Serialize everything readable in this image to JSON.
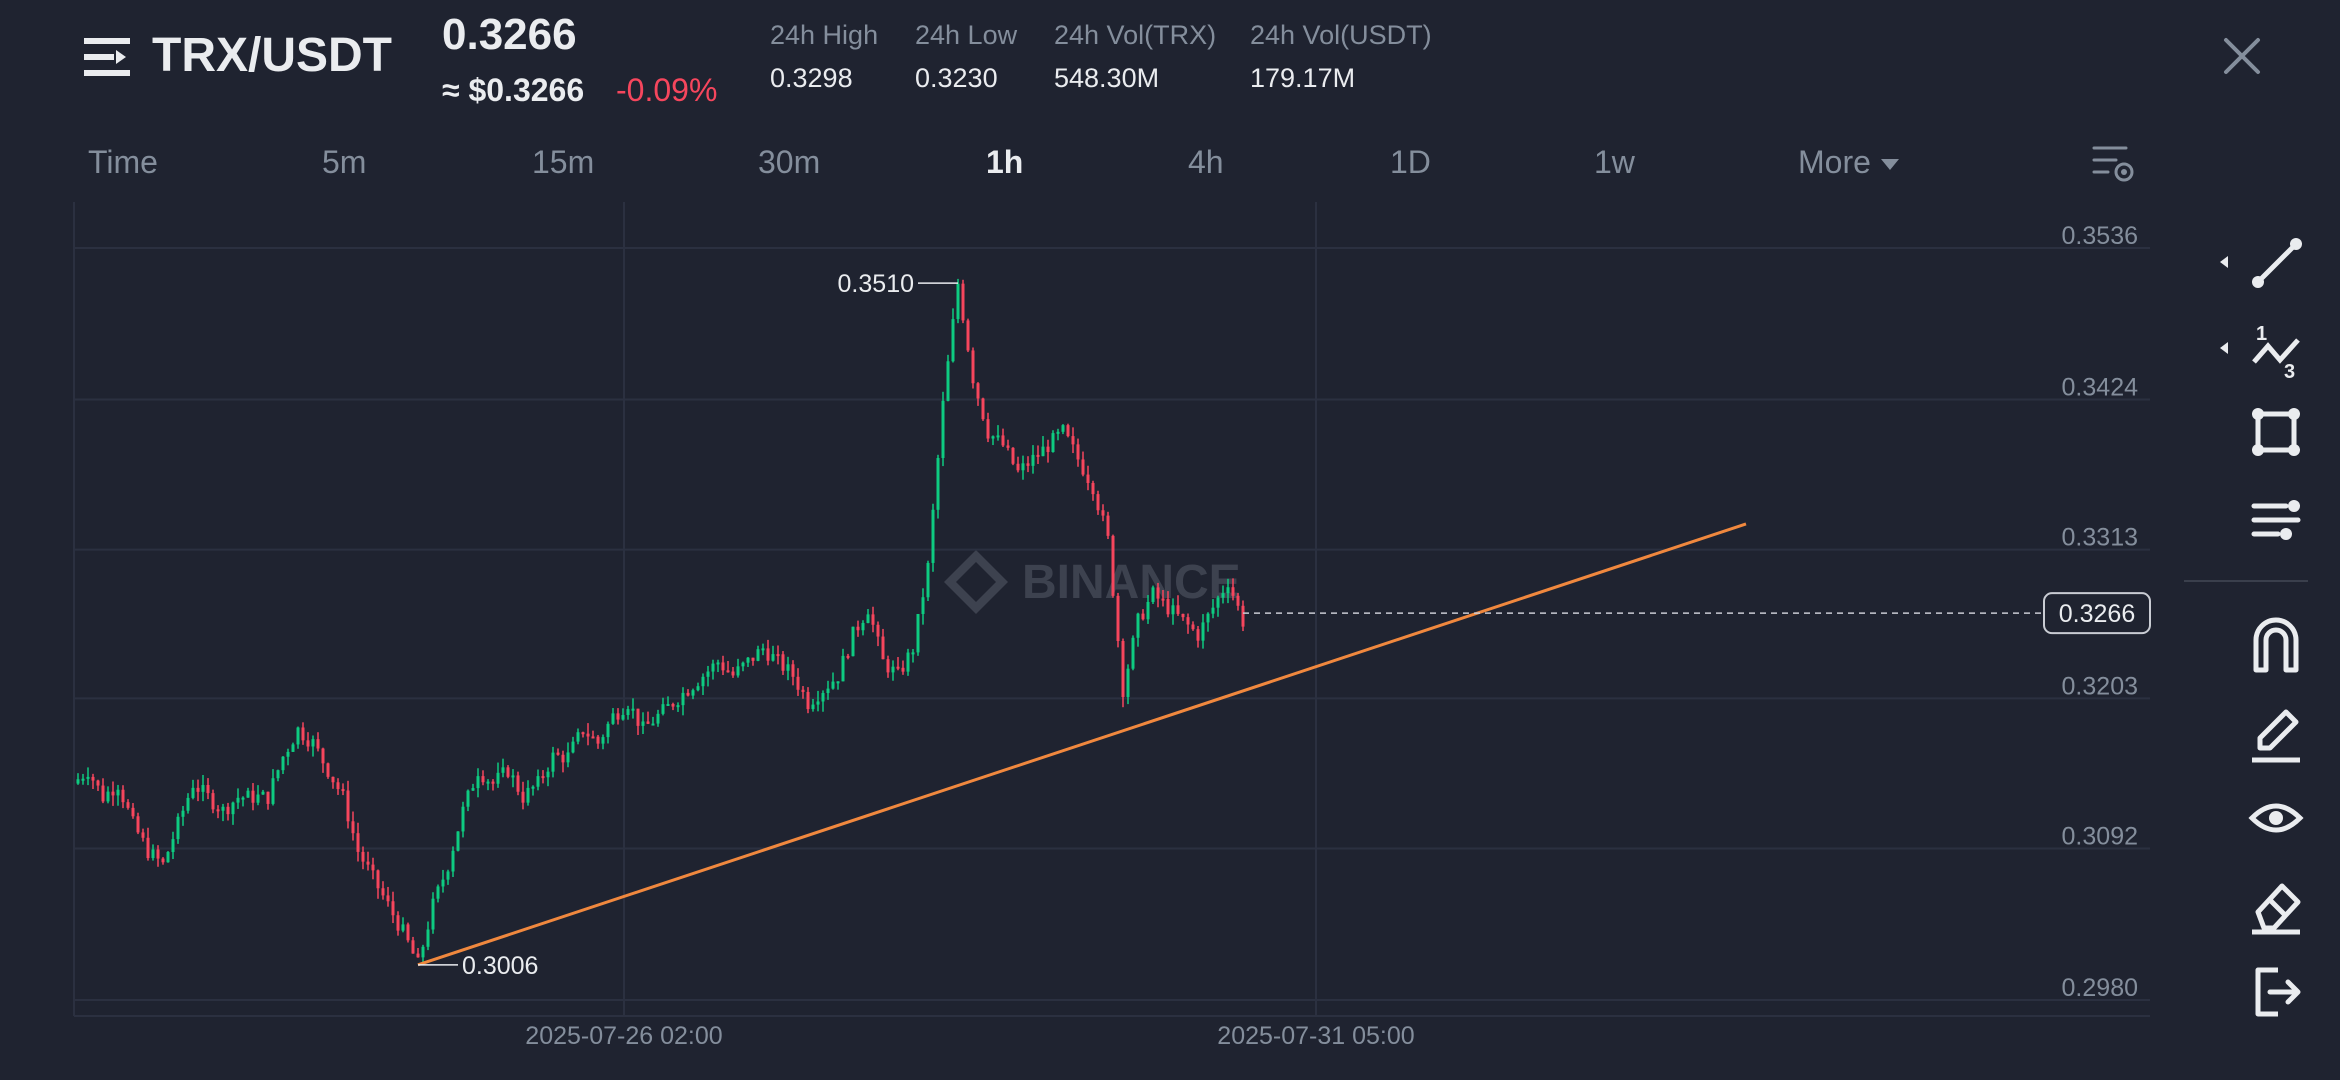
{
  "header": {
    "pair": "TRX/USDT",
    "price": "0.3266",
    "fiat_price": "≈ $0.3266",
    "change": "-0.09%",
    "stats": [
      {
        "label": "24h High",
        "value": "0.3298"
      },
      {
        "label": "24h Low",
        "value": "0.3230"
      },
      {
        "label": "24h Vol(TRX)",
        "value": "548.30M"
      },
      {
        "label": "24h Vol(USDT)",
        "value": "179.17M"
      }
    ]
  },
  "tabs": [
    "Time",
    "5m",
    "15m",
    "30m",
    "1h",
    "4h",
    "1D",
    "1w",
    "More"
  ],
  "active_tab": "1h",
  "watermark": "BINANCE",
  "colors": {
    "up": "#0ecb81",
    "down": "#f6465d",
    "trendline": "#f0883e",
    "background": "#1f2330"
  },
  "toolbar_icons": [
    "trend-line-icon",
    "fibonacci-icon",
    "rectangle-icon",
    "indicator-settings-icon",
    "magnet-icon",
    "pencil-icon",
    "eye-icon",
    "eraser-icon",
    "exit-icon"
  ],
  "chart_data": {
    "type": "candlestick",
    "title": "",
    "y_ticks": [
      "0.3536",
      "0.3424",
      "0.3313",
      "0.3203",
      "0.3092",
      "0.2980"
    ],
    "ylim": [
      0.298,
      0.3536
    ],
    "x_ticks": [
      "2025-07-26 02:00",
      "2025-07-31 05:00"
    ],
    "current_price": "0.3266",
    "high_marker": "0.3510",
    "low_marker": "0.3006",
    "grid": true,
    "close_path": [
      0.314,
      0.315,
      0.313,
      0.314,
      0.311,
      0.309,
      0.308,
      0.311,
      0.314,
      0.313,
      0.312,
      0.313,
      0.313,
      0.313,
      0.316,
      0.318,
      0.317,
      0.315,
      0.313,
      0.309,
      0.307,
      0.305,
      0.303,
      0.3006,
      0.305,
      0.308,
      0.312,
      0.315,
      0.314,
      0.315,
      0.313,
      0.314,
      0.316,
      0.316,
      0.318,
      0.317,
      0.319,
      0.32,
      0.318,
      0.319,
      0.32,
      0.321,
      0.322,
      0.323,
      0.322,
      0.323,
      0.324,
      0.323,
      0.322,
      0.32,
      0.321,
      0.322,
      0.325,
      0.327,
      0.323,
      0.322,
      0.324,
      0.33,
      0.342,
      0.351,
      0.344,
      0.34,
      0.339,
      0.337,
      0.338,
      0.339,
      0.34,
      0.338,
      0.336,
      0.332,
      0.321,
      0.326,
      0.328,
      0.327,
      0.326,
      0.325,
      0.327,
      0.329,
      0.326
    ],
    "trendline": [
      [
        23,
        0.3006
      ],
      [
        98,
        0.3332
      ]
    ]
  }
}
